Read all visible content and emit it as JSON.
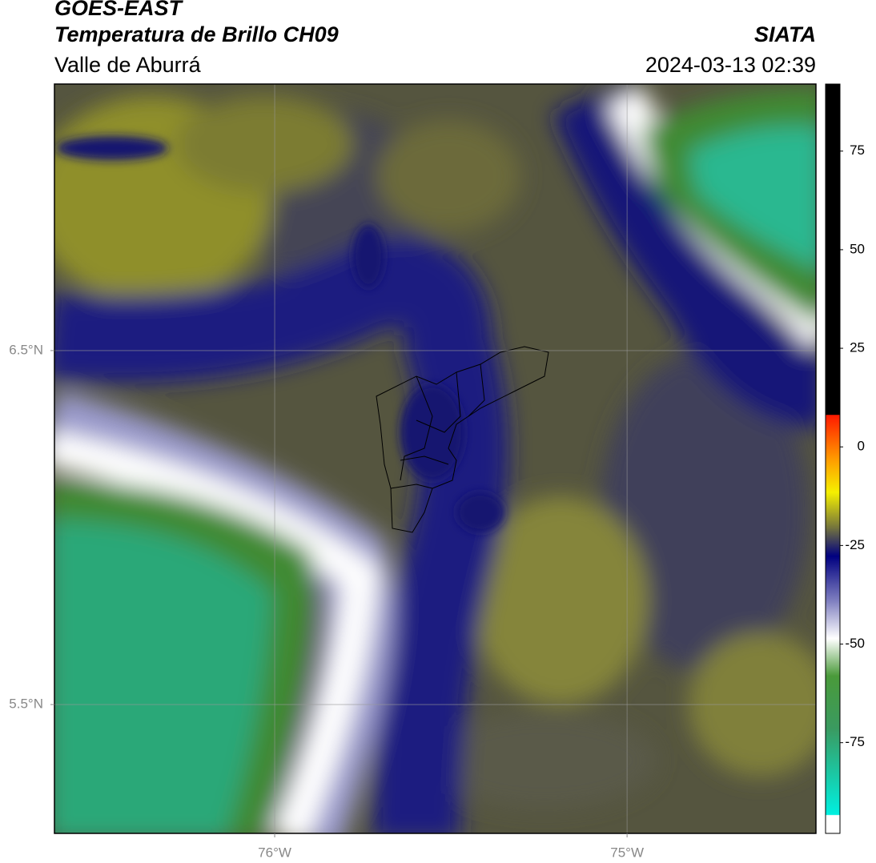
{
  "header": {
    "title": "GOES-EAST",
    "subtitle": "Temperatura de Brillo CH09",
    "region": "Valle de Aburrá",
    "source": "SIATA",
    "timestamp": "2024-03-13 02:39"
  },
  "map": {
    "xlim": [
      -76.625,
      -74.464
    ],
    "ylim": [
      5.136,
      7.253
    ],
    "xticks": [
      {
        "value": -76,
        "label": "76°W"
      },
      {
        "value": -75,
        "label": "75°W"
      }
    ],
    "yticks": [
      {
        "value": 6.5,
        "label": "6.5°N"
      },
      {
        "value": 5.5,
        "label": "5.5°N"
      }
    ],
    "grid": true
  },
  "colorbar": {
    "lim": [
      -98,
      92
    ],
    "ticks": [
      75,
      50,
      25,
      0,
      -25,
      -50,
      -75
    ]
  }
}
